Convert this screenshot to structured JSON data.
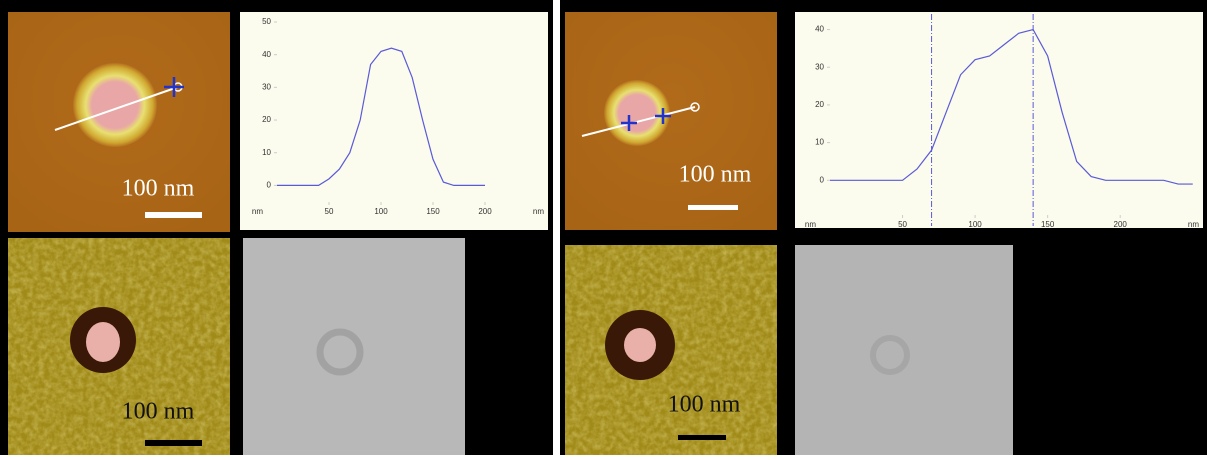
{
  "chart_data": [
    {
      "type": "line",
      "xlabel": "nm",
      "ylabel": "nm",
      "x": [
        0,
        10,
        20,
        30,
        40,
        50,
        60,
        70,
        80,
        90,
        100,
        110,
        120,
        130,
        140,
        150,
        160,
        170,
        180,
        190,
        200
      ],
      "series": [
        {
          "color": "#5a5ad8",
          "values": [
            0,
            0,
            0,
            0,
            0,
            2,
            5,
            10,
            20,
            37,
            41,
            42,
            41,
            33,
            20,
            8,
            1,
            0,
            0,
            0,
            0
          ]
        }
      ],
      "xlim": [
        0,
        250
      ],
      "ylim": [
        -6,
        50
      ],
      "xticks": [
        50,
        100,
        150,
        200
      ],
      "yticks": [
        0,
        10,
        20,
        30,
        40,
        50
      ]
    },
    {
      "type": "line",
      "xlabel": "nm",
      "ylabel": "nm",
      "x": [
        0,
        10,
        20,
        30,
        40,
        50,
        60,
        70,
        80,
        90,
        100,
        110,
        120,
        130,
        140,
        150,
        160,
        170,
        180,
        190,
        200,
        210,
        220,
        230,
        240,
        250
      ],
      "series": [
        {
          "color": "#5a5ad8",
          "values": [
            0,
            0,
            0,
            0,
            0,
            0,
            3,
            8,
            18,
            28,
            32,
            33,
            36,
            39,
            40,
            33,
            18,
            5,
            1,
            0,
            0,
            0,
            0,
            0,
            -1,
            -1
          ]
        }
      ],
      "vlines": [
        70,
        140
      ],
      "xlim": [
        0,
        255
      ],
      "ylim": [
        -10,
        42
      ],
      "xticks": [
        50,
        100,
        150,
        200
      ],
      "yticks": [
        0,
        10,
        20,
        30,
        40
      ]
    }
  ],
  "scale_bars": [
    "100 nm",
    "100 nm",
    "100 nm",
    "100 nm"
  ]
}
